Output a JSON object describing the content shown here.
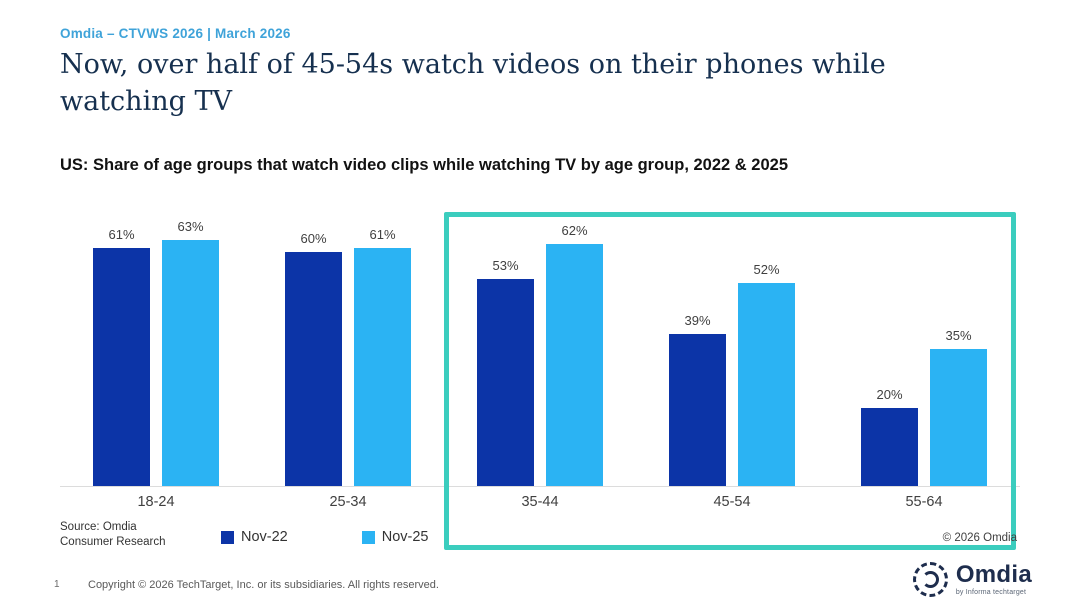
{
  "header": {
    "eyebrow": "Omdia – CTVWS 2026 | March 2026",
    "title": "Now, over half of 45-54s watch videos on their phones while watching TV"
  },
  "subtitle": "US: Share of age groups that watch video clips while watching TV by age group, 2022 & 2025",
  "chart_data": {
    "type": "bar",
    "categories": [
      "18-24",
      "25-34",
      "35-44",
      "45-54",
      "55-64"
    ],
    "series": [
      {
        "name": "Nov-22",
        "color": "#0c34a7",
        "values": [
          61,
          60,
          53,
          39,
          20
        ]
      },
      {
        "name": "Nov-25",
        "color": "#2bb3f3",
        "values": [
          63,
          61,
          62,
          52,
          35
        ]
      }
    ],
    "value_suffix": "%",
    "ylim": [
      0,
      73
    ],
    "grid": false,
    "legend_position": "bottom",
    "highlight": {
      "categories": [
        "35-44",
        "45-54",
        "55-64"
      ],
      "color": "#3bcdbe"
    }
  },
  "source_note": {
    "line1": "Source: Omdia",
    "line2": "Consumer Research"
  },
  "copyright_note": "© 2026 Omdia",
  "footer": {
    "page_number": "1",
    "copyright": "Copyright © 2026 TechTarget, Inc. or its subsidiaries. All rights reserved.",
    "logo_text": "Omdia",
    "logo_tagline": "by Informa techtarget"
  },
  "colors": {
    "eyebrow": "#3fa3d9",
    "title": "#16304f",
    "nov22_bar": "#0c34a7",
    "nov25_bar": "#2bb3f3",
    "highlight_border": "#3bcdbe",
    "axis_line": "#dcdcdc"
  }
}
